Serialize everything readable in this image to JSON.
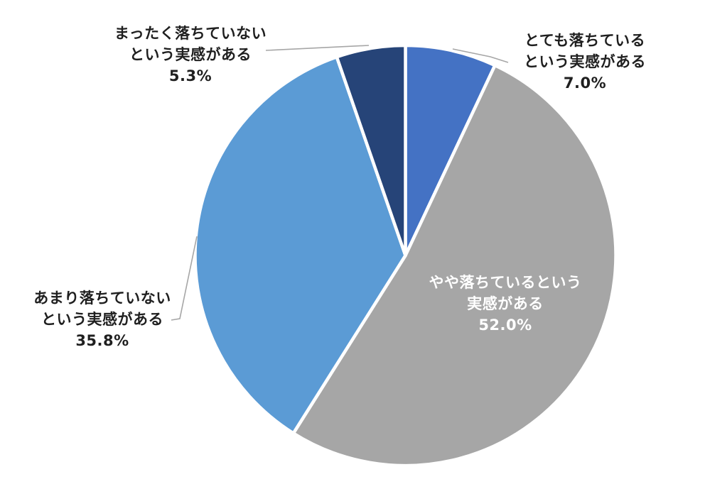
{
  "chart_data": {
    "type": "pie",
    "title": "",
    "categories": [
      "とても落ちているという実感がある",
      "やや落ちているという実感がある",
      "あまり落ちていないという実感がある",
      "まったく落ちていないという実感がある"
    ],
    "values": [
      7.0,
      52.0,
      35.8,
      5.3
    ],
    "unit": "%",
    "colors": [
      "#4472C4",
      "#A6A6A6",
      "#5B9BD5",
      "#264478"
    ],
    "start_angle_deg": 0,
    "direction": "clockwise",
    "slice_border_color": "#FFFFFF",
    "leader_line_color": "#A6A6A6",
    "label_color_outside": "#1F1F1F",
    "label_color_inside": "#FFFFFF",
    "background": "#FFFFFF",
    "legend": "none"
  },
  "labels": {
    "very_declined": {
      "line1": "とても落ちている",
      "line2": "という実感がある",
      "value": "7.0%"
    },
    "somewhat_declined": {
      "line1": "やや落ちているという",
      "line2": "実感がある",
      "value": "52.0%"
    },
    "not_much_declined": {
      "line1": "あまり落ちていない",
      "line2": "という実感がある",
      "value": "35.8%"
    },
    "not_at_all_declined": {
      "line1": "まったく落ちていない",
      "line2": "という実感がある",
      "value": "5.3%"
    }
  }
}
